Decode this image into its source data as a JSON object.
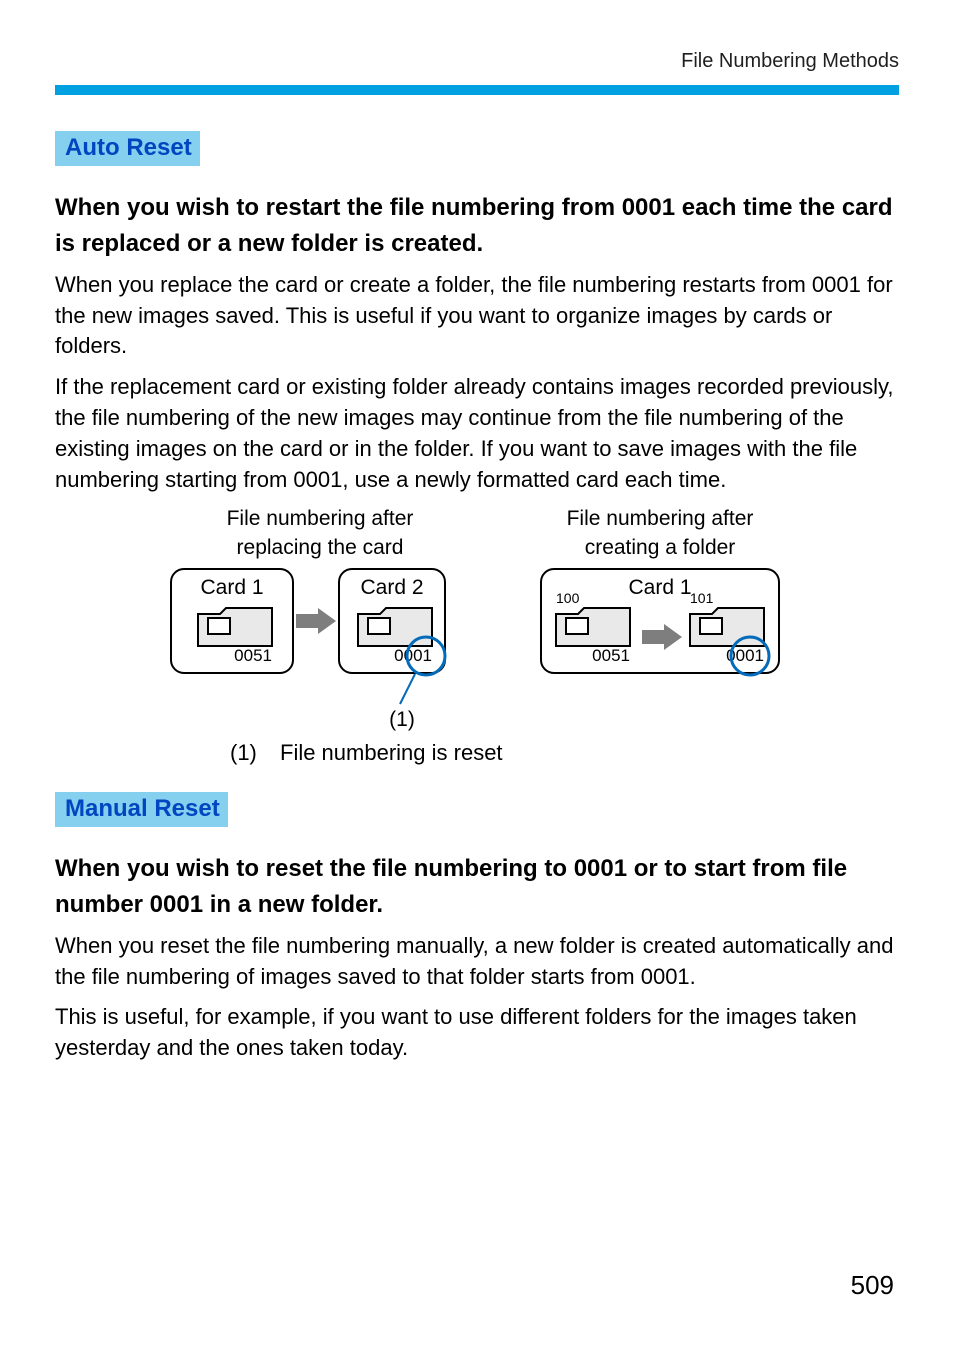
{
  "breadcrumb": "File Numbering Methods",
  "page_number": "509",
  "sections": {
    "auto": {
      "heading": "Auto Reset",
      "sub": "When you wish to restart the file numbering from 0001 each time the card is replaced or a new folder is created.",
      "body1": "When you replace the card or create a folder, the file numbering restarts from 0001 for the new images saved. This is useful if you want to organize images by cards or folders.",
      "body2": "If the replacement card or existing folder already contains images recorded previously, the file numbering of the new images may continue from the file numbering of the existing images on the card or in the folder. If you want to save images with the file numbering starting from 0001, use a newly formatted card each time."
    },
    "manual": {
      "heading": "Manual Reset",
      "sub": "When you wish to reset the file numbering to 0001 or to start from file number 0001 in a new folder.",
      "body1": "When you reset the file numbering manually, a new folder is created automatically and the file numbering of images saved to that folder starts from 0001.",
      "body2": "This is useful, for example, if you want to use different folders for the images taken yesterday and the ones taken today."
    }
  },
  "diagram": {
    "left_title": "File numbering after\nreplacing the card",
    "right_title": "File numbering after\ncreating a folder",
    "left": {
      "card1": {
        "label": "Card 1",
        "file": "0051"
      },
      "card2": {
        "label": "Card 2",
        "file": "0001",
        "ring": true
      }
    },
    "right": {
      "label": "Card 1",
      "folder1": {
        "name": "100",
        "file": "0051"
      },
      "folder2": {
        "name": "101",
        "file": "0001",
        "ring": true
      }
    },
    "callout": "(1)",
    "legend_n": "(1)",
    "legend_t": "File numbering is reset",
    "colors": {
      "heading_bg": "#85cfef",
      "heading_fg": "#0046c0",
      "hr": "#00a0e1",
      "ring": "#036bba",
      "arrow": "#7e7e7e",
      "folder_fill": "#e9e9e9",
      "folder_stroke": "#000000"
    }
  }
}
